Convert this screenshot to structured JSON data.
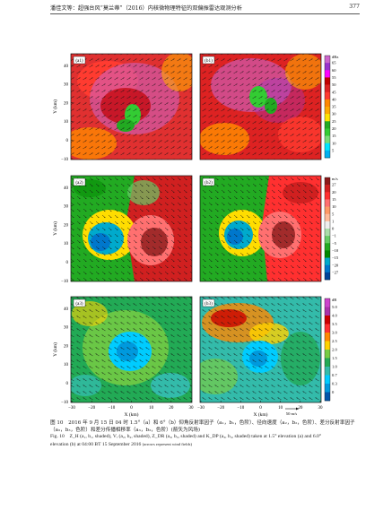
{
  "header": {
    "authors": "潘佳文等：超强台风“莫兰蒂”（2016）内核微物理特征的双偏振雷达观测分析",
    "page_number": "377"
  },
  "figure": {
    "y_axis_label": "Y (km)",
    "x_axis_label": "X (km)",
    "y_ticks": [
      "40",
      "30",
      "20",
      "10",
      "0",
      "−10"
    ],
    "x_ticks": [
      "−30",
      "−20",
      "−10",
      "0",
      "10",
      "20",
      "30"
    ],
    "panels": [
      {
        "left": "(a1)",
        "right": "(b1)",
        "field": "ZH",
        "unit": "dBz",
        "colorbar": [
          "65",
          "60",
          "55",
          "50",
          "45",
          "40",
          "35",
          "30",
          "25",
          "20",
          "15",
          "10",
          "5"
        ],
        "colors": [
          "#cc66cc",
          "#9933cc",
          "#ff00ff",
          "#c00000",
          "#dd2222",
          "#ff3b30",
          "#ff8800",
          "#ffaa00",
          "#ffe400",
          "#22aa22",
          "#33cc33",
          "#77dd77",
          "#00e5ff",
          "#00b0f0"
        ]
      },
      {
        "left": "(a2)",
        "right": "(b2)",
        "field": "Vr",
        "unit": "m/s",
        "colorbar": [
          "27",
          "20",
          "15",
          "10",
          "5",
          "1",
          "0",
          "−1",
          "−5",
          "−10",
          "−15",
          "−20",
          "−27"
        ],
        "colors": [
          "#8b1a1a",
          "#d02020",
          "#ff3030",
          "#ff7070",
          "#ff9966",
          "#ffbb99",
          "#eeeeee",
          "#aaddaa",
          "#66cc66",
          "#22aa22",
          "#008800",
          "#00aacc",
          "#0077cc",
          "#004499"
        ]
      },
      {
        "left": "(a3)",
        "right": "(b3)",
        "field": "ZDR",
        "unit": "dB",
        "colorbar": [
          "5.0",
          "4.0",
          "3.5",
          "3.0",
          "2.5",
          "2.0",
          "1.5",
          "1.0",
          "0.7",
          "0.3",
          "0"
        ],
        "colors": [
          "#cc44cc",
          "#aa33aa",
          "#cc0000",
          "#ff3030",
          "#ff8800",
          "#ffd200",
          "#77cc44",
          "#22aa55",
          "#33bbaa",
          "#00ccff",
          "#0099dd",
          "#0055aa"
        ]
      }
    ],
    "vector_scale_label": "50 m/s"
  },
  "caption": {
    "zh_line1": "图 10　2016 年 9 月 15 日 04 时 1.5°（a）和 6°（b）仰角反射率因子（a₁，b₁，色阶）、径向速度（a₂，b₂，色阶）、差分反射率因子",
    "zh_line2": "（a₃，b₃，色阶）和差分传播相移率（a₃，b₃，色阶）(箭矢为风场)",
    "en_line1": "Fig. 10　Z_H (a₁, b₁, shaded), Vᵣ (a₂, b₂, shaded), Z_DR (a₃, b₃, shaded) and K_DP (a₃, b₃, shaded) taken at 1.5° elevation (a) and 6.0°",
    "en_line2": "elevation (b) at 04:00 BT 15 September 2016",
    "en_note": "(arrows represent wind fields)"
  }
}
